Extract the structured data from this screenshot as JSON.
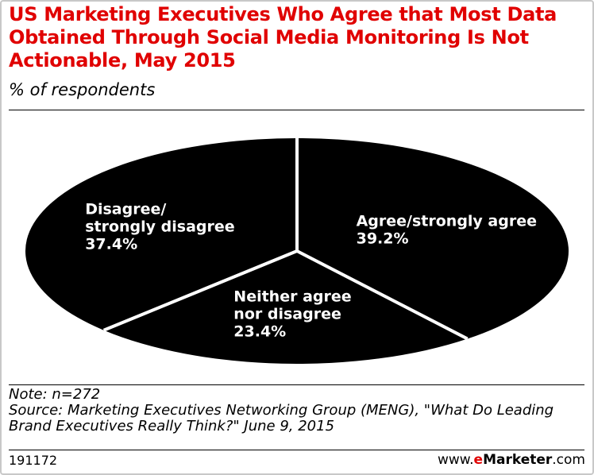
{
  "chart_data": {
    "type": "pie",
    "title": "US Marketing Executives Who Agree that Most Data Obtained Through Social Media Monitoring Is Not Actionable, May 2015",
    "subtitle": "% of respondents",
    "slices": [
      {
        "label_lines": [
          "Agree/strongly agree"
        ],
        "value": 39.2,
        "value_label": "39.2%"
      },
      {
        "label_lines": [
          "Neither agree",
          "nor disagree"
        ],
        "value": 23.4,
        "value_label": "23.4%"
      },
      {
        "label_lines": [
          "Disagree/",
          "strongly disagree"
        ],
        "value": 37.4,
        "value_label": "37.4%"
      }
    ],
    "colors": {
      "slice_fill": "#000000",
      "separator": "#ffffff",
      "label": "#ffffff"
    }
  },
  "footer": {
    "note": "Note: n=272",
    "source_line1": "Source: Marketing Executives Networking Group (MENG), \"What Do Leading",
    "source_line2": "Brand Executives Really Think?\" June 9, 2015",
    "chart_id": "191172",
    "brand_prefix": "www.",
    "brand_e": "e",
    "brand_name": "Marketer",
    "brand_suffix": ".com"
  },
  "colors": {
    "title": "#e00000",
    "brand_accent": "#e00000"
  }
}
